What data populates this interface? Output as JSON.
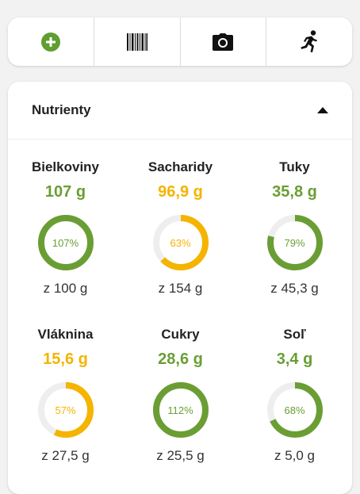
{
  "toolbar": {
    "items": [
      {
        "icon": "plus-circle-icon",
        "color": "#5f9e2f"
      },
      {
        "icon": "barcode-icon"
      },
      {
        "icon": "camera-icon"
      },
      {
        "icon": "running-person-icon"
      }
    ]
  },
  "card": {
    "title": "Nutrienty",
    "collapse_icon": "caret-up-icon"
  },
  "colors": {
    "green": "#6a9e34",
    "yellow": "#f4b400",
    "track": "#eeeeee"
  },
  "nutrients": [
    {
      "name": "Bielkoviny",
      "amount": "107 g",
      "percent_label": "107%",
      "percent": 100,
      "goal": "z 100 g",
      "status": "green"
    },
    {
      "name": "Sacharidy",
      "amount": "96,9 g",
      "percent_label": "63%",
      "percent": 63,
      "goal": "z 154 g",
      "status": "yellow"
    },
    {
      "name": "Tuky",
      "amount": "35,8 g",
      "percent_label": "79%",
      "percent": 79,
      "goal": "z 45,3 g",
      "status": "green"
    },
    {
      "name": "Vláknina",
      "amount": "15,6 g",
      "percent_label": "57%",
      "percent": 57,
      "goal": "z 27,5 g",
      "status": "yellow"
    },
    {
      "name": "Cukry",
      "amount": "28,6 g",
      "percent_label": "112%",
      "percent": 100,
      "goal": "z 25,5 g",
      "status": "green"
    },
    {
      "name": "Soľ",
      "amount": "3,4 g",
      "percent_label": "68%",
      "percent": 68,
      "goal": "z 5,0 g",
      "status": "green"
    }
  ]
}
